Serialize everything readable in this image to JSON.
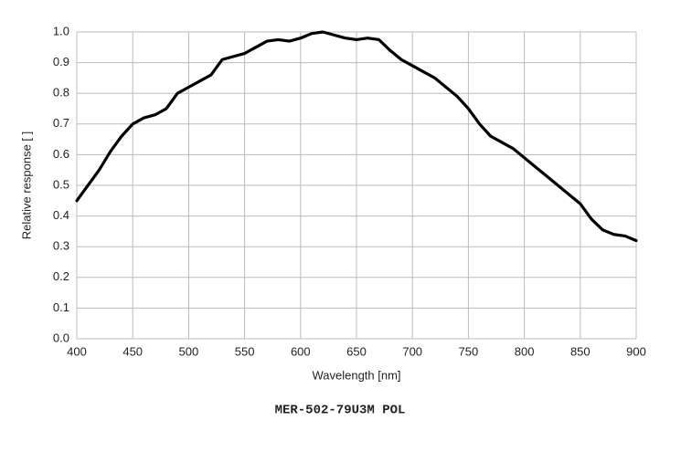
{
  "chart_data": {
    "type": "line",
    "x_label": "Wavelength [nm]",
    "y_label": "Relative response [ ]",
    "caption": "MER-502-79U3M POL",
    "x": [
      400,
      410,
      420,
      430,
      440,
      450,
      460,
      470,
      480,
      490,
      500,
      510,
      520,
      530,
      540,
      550,
      560,
      570,
      580,
      590,
      600,
      610,
      620,
      630,
      640,
      650,
      660,
      670,
      680,
      690,
      700,
      710,
      720,
      730,
      740,
      750,
      760,
      770,
      780,
      790,
      800,
      810,
      820,
      830,
      840,
      850,
      860,
      870,
      880,
      890,
      900
    ],
    "series": [
      {
        "color": "#000000",
        "values": [
          0.45,
          0.5,
          0.55,
          0.61,
          0.66,
          0.7,
          0.72,
          0.73,
          0.75,
          0.8,
          0.82,
          0.84,
          0.86,
          0.91,
          0.92,
          0.93,
          0.95,
          0.97,
          0.975,
          0.97,
          0.98,
          0.995,
          1.0,
          0.99,
          0.98,
          0.975,
          0.98,
          0.975,
          0.94,
          0.91,
          0.89,
          0.87,
          0.85,
          0.82,
          0.79,
          0.75,
          0.7,
          0.66,
          0.64,
          0.62,
          0.59,
          0.56,
          0.53,
          0.5,
          0.47,
          0.44,
          0.39,
          0.355,
          0.34,
          0.335,
          0.32
        ]
      }
    ],
    "xlim": [
      400,
      900
    ],
    "xticks": [
      400,
      450,
      500,
      550,
      600,
      650,
      700,
      750,
      800,
      850,
      900
    ],
    "ylim": [
      0,
      1
    ],
    "yticks": [
      {
        "value": 0,
        "label": "0.0"
      },
      0.1,
      0.2,
      0.3,
      0.4,
      0.5,
      0.6,
      0.7,
      0.8,
      0.9,
      {
        "value": 1,
        "label": "1.0"
      }
    ],
    "grid": true
  }
}
